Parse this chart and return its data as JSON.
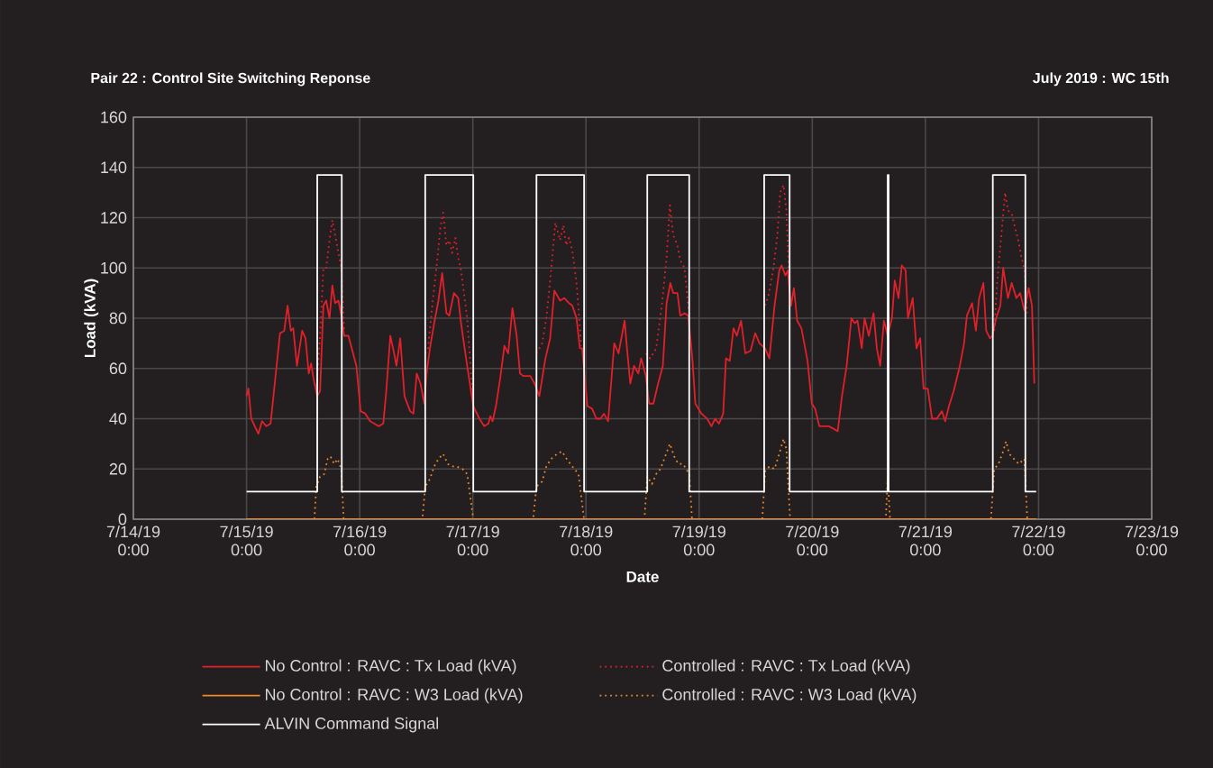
{
  "chart_data": {
    "type": "line",
    "title": "Pair 22 : Control Site Switching Reponse",
    "subtitle": "July 2019 : WC 15th",
    "xlabel": "Date",
    "ylabel": "Load (kVA)",
    "xlim": [
      "2019-07-14",
      "2019-07-23"
    ],
    "ylim": [
      0,
      160
    ],
    "yticks": [
      0,
      20,
      40,
      60,
      80,
      100,
      120,
      140,
      160
    ],
    "xticks": [
      {
        "value": "2019-07-14",
        "label": "7/14/19 0:00"
      },
      {
        "value": "2019-07-15",
        "label": "7/15/19 0:00"
      },
      {
        "value": "2019-07-16",
        "label": "7/16/19 0:00"
      },
      {
        "value": "2019-07-17",
        "label": "7/17/19 0:00"
      },
      {
        "value": "2019-07-18",
        "label": "7/18/19 0:00"
      },
      {
        "value": "2019-07-19",
        "label": "7/19/19 0:00"
      },
      {
        "value": "2019-07-20",
        "label": "7/20/19 0:00"
      },
      {
        "value": "2019-07-21",
        "label": "7/21/19 0:00"
      },
      {
        "value": "2019-07-22",
        "label": "7/22/19 0:00"
      },
      {
        "value": "2019-07-23",
        "label": "7/23/19 0:00"
      }
    ],
    "grid": true,
    "legend": "bottom",
    "marker": "none",
    "series": [
      {
        "name": "No Control : RAVC : Tx Load (kVA)",
        "color": "#e3202a",
        "line_style": "solid",
        "x": [
          "2019-07-15T00:00",
          "2019-07-15T00:24",
          "2019-07-15T01:00",
          "2019-07-15T02:00",
          "2019-07-15T02:30",
          "2019-07-15T03:18",
          "2019-07-15T04:12",
          "2019-07-15T05:06",
          "2019-07-15T06:06",
          "2019-07-15T07:06",
          "2019-07-15T08:00",
          "2019-07-15T08:42",
          "2019-07-15T09:24",
          "2019-07-15T09:54",
          "2019-07-15T10:42",
          "2019-07-15T11:48",
          "2019-07-15T12:30",
          "2019-07-15T13:12",
          "2019-07-15T13:42",
          "2019-07-15T14:12",
          "2019-07-15T15:00",
          "2019-07-15T15:36",
          "2019-07-15T16:18",
          "2019-07-15T16:54",
          "2019-07-15T17:36",
          "2019-07-15T18:12",
          "2019-07-15T18:48",
          "2019-07-15T19:30",
          "2019-07-15T20:06",
          "2019-07-15T20:42",
          "2019-07-15T21:36",
          "2019-07-15T22:36",
          "2019-07-15T23:18",
          "2019-07-16T00:12",
          "2019-07-16T01:12",
          "2019-07-16T02:12",
          "2019-07-16T03:06",
          "2019-07-16T04:00",
          "2019-07-16T05:00",
          "2019-07-16T05:36",
          "2019-07-16T06:30",
          "2019-07-16T07:18",
          "2019-07-16T07:48",
          "2019-07-16T08:36",
          "2019-07-16T09:30",
          "2019-07-16T10:42",
          "2019-07-16T11:24",
          "2019-07-16T12:06",
          "2019-07-16T12:54",
          "2019-07-16T13:42",
          "2019-07-16T14:12",
          "2019-07-16T14:54",
          "2019-07-16T15:48",
          "2019-07-16T16:42",
          "2019-07-16T17:30",
          "2019-07-16T18:24",
          "2019-07-16T19:00",
          "2019-07-16T20:00",
          "2019-07-16T20:54",
          "2019-07-16T21:30",
          "2019-07-16T22:48",
          "2019-07-17T00:06",
          "2019-07-17T01:24",
          "2019-07-17T02:24",
          "2019-07-17T03:18",
          "2019-07-17T03:42",
          "2019-07-17T04:12",
          "2019-07-17T04:54",
          "2019-07-17T05:48",
          "2019-07-17T06:42",
          "2019-07-17T07:30",
          "2019-07-17T08:24",
          "2019-07-17T09:18",
          "2019-07-17T10:00",
          "2019-07-17T10:42",
          "2019-07-17T11:18",
          "2019-07-17T12:12",
          "2019-07-17T13:06",
          "2019-07-17T14:06",
          "2019-07-17T15:24",
          "2019-07-17T16:24",
          "2019-07-17T17:18",
          "2019-07-17T18:30",
          "2019-07-17T19:24",
          "2019-07-17T20:24",
          "2019-07-17T21:06",
          "2019-07-17T22:00",
          "2019-07-17T22:42",
          "2019-07-17T23:12",
          "2019-07-18T00:18",
          "2019-07-18T01:18",
          "2019-07-18T02:12",
          "2019-07-18T03:06",
          "2019-07-18T03:48",
          "2019-07-18T04:42",
          "2019-07-18T06:00",
          "2019-07-18T06:54",
          "2019-07-18T07:36",
          "2019-07-18T08:12",
          "2019-07-18T08:42",
          "2019-07-18T09:24",
          "2019-07-18T10:12",
          "2019-07-18T11:06",
          "2019-07-18T11:42",
          "2019-07-18T12:42",
          "2019-07-18T13:24",
          "2019-07-18T14:18",
          "2019-07-18T15:18",
          "2019-07-18T16:18",
          "2019-07-18T17:06",
          "2019-07-18T17:54",
          "2019-07-18T18:30",
          "2019-07-18T19:24",
          "2019-07-18T20:00",
          "2019-07-18T20:54",
          "2019-07-18T21:42",
          "2019-07-18T22:36",
          "2019-07-18T23:12",
          "2019-07-19T00:30",
          "2019-07-19T01:42",
          "2019-07-19T02:36",
          "2019-07-19T03:24",
          "2019-07-19T04:12",
          "2019-07-19T05:06",
          "2019-07-19T05:42",
          "2019-07-19T06:30",
          "2019-07-19T07:18",
          "2019-07-19T08:00",
          "2019-07-19T08:54",
          "2019-07-19T09:48",
          "2019-07-19T10:54",
          "2019-07-19T11:54",
          "2019-07-19T12:48",
          "2019-07-19T14:00",
          "2019-07-19T14:54",
          "2019-07-19T16:00",
          "2019-07-19T17:00",
          "2019-07-19T17:30",
          "2019-07-19T18:18",
          "2019-07-19T18:48",
          "2019-07-19T19:30",
          "2019-07-19T20:06",
          "2019-07-19T20:48",
          "2019-07-19T21:42",
          "2019-07-19T23:00",
          "2019-07-19T23:54",
          "2019-07-20T00:36",
          "2019-07-20T01:30",
          "2019-07-20T02:24",
          "2019-07-20T03:30",
          "2019-07-20T04:30",
          "2019-07-20T05:24",
          "2019-07-20T06:18",
          "2019-07-20T07:18",
          "2019-07-20T08:18",
          "2019-07-20T09:00",
          "2019-07-20T09:36",
          "2019-07-20T10:30",
          "2019-07-20T11:06",
          "2019-07-20T12:00",
          "2019-07-20T13:00",
          "2019-07-20T13:42",
          "2019-07-20T14:24",
          "2019-07-20T15:12",
          "2019-07-20T16:00",
          "2019-07-20T16:54",
          "2019-07-20T17:30",
          "2019-07-20T18:18",
          "2019-07-20T19:00",
          "2019-07-20T19:48",
          "2019-07-20T20:18",
          "2019-07-20T21:18",
          "2019-07-20T22:06",
          "2019-07-20T22:54",
          "2019-07-20T23:36",
          "2019-07-21T00:30",
          "2019-07-21T01:24",
          "2019-07-21T02:24",
          "2019-07-21T03:30",
          "2019-07-21T04:12",
          "2019-07-21T05:00",
          "2019-07-21T06:00",
          "2019-07-21T07:18",
          "2019-07-21T08:12",
          "2019-07-21T08:48",
          "2019-07-21T09:54",
          "2019-07-21T10:42",
          "2019-07-21T11:24",
          "2019-07-21T12:18",
          "2019-07-21T12:54",
          "2019-07-21T13:42",
          "2019-07-21T14:12",
          "2019-07-21T15:00",
          "2019-07-21T15:54",
          "2019-07-21T16:30",
          "2019-07-21T17:30",
          "2019-07-21T18:18",
          "2019-07-21T19:18",
          "2019-07-21T20:06",
          "2019-07-21T21:00",
          "2019-07-21T21:54",
          "2019-07-21T22:36",
          "2019-07-21T23:06"
        ],
        "values": [
          49,
          52,
          40,
          36,
          34,
          39,
          37,
          38,
          56,
          74,
          75,
          85,
          75,
          76,
          61,
          75,
          72,
          58,
          62,
          56,
          49,
          51,
          85,
          87,
          80,
          93,
          86,
          87,
          81,
          73,
          73,
          66,
          61,
          43,
          42,
          39,
          38,
          37,
          38,
          50,
          73,
          66,
          61,
          72,
          49,
          43,
          42,
          58,
          54,
          46,
          58,
          68,
          78,
          87,
          98,
          82,
          81,
          90,
          88,
          78,
          61,
          45,
          40,
          37,
          38,
          41,
          39,
          45,
          56,
          69,
          66,
          84,
          73,
          58,
          57,
          57,
          57,
          54,
          49,
          64,
          72,
          91,
          87,
          88,
          86,
          85,
          80,
          68,
          68,
          45,
          44,
          40,
          40,
          42,
          39,
          70,
          66,
          73,
          79,
          68,
          54,
          61,
          58,
          64,
          57,
          46,
          46,
          54,
          61,
          86,
          94,
          90,
          90,
          81,
          82,
          81,
          63,
          46,
          42,
          40,
          37,
          40,
          38,
          42,
          64,
          63,
          76,
          73,
          79,
          66,
          67,
          74,
          70,
          68,
          64,
          85,
          99,
          101,
          97,
          99,
          85,
          92,
          79,
          76,
          63,
          46,
          44,
          37,
          37,
          37,
          36,
          35,
          49,
          61,
          80,
          78,
          79,
          68,
          80,
          73,
          82,
          68,
          61,
          79,
          73,
          80,
          95,
          88,
          101,
          99,
          80,
          88,
          68,
          72,
          52,
          52,
          40,
          40,
          43,
          39,
          45,
          51,
          61,
          70,
          81,
          86,
          75,
          88,
          94,
          75,
          72,
          73,
          80,
          85,
          100,
          88,
          94,
          88,
          90,
          83,
          92,
          85,
          54
        ]
      },
      {
        "name": "Controlled : RAVC : Tx Load (kVA)",
        "color": "#e3202a",
        "line_style": "dotted",
        "x": [
          "2019-07-15T14:48",
          "2019-07-15T15:36",
          "2019-07-15T16:18",
          "2019-07-15T16:54",
          "2019-07-15T17:36",
          "2019-07-15T18:12",
          "2019-07-15T18:48",
          "2019-07-15T19:30",
          "2019-07-15T20:06",
          "2019-07-15T20:42",
          "2019-07-16T02:00",
          "2019-07-16T13:54",
          "2019-07-16T14:30",
          "2019-07-16T15:24",
          "2019-07-16T16:30",
          "2019-07-16T17:06",
          "2019-07-16T17:42",
          "2019-07-16T18:24",
          "2019-07-16T19:00",
          "2019-07-16T19:36",
          "2019-07-16T20:18",
          "2019-07-16T20:54",
          "2019-07-16T21:30",
          "2019-07-16T22:48",
          "2019-07-17T00:06",
          "2019-07-17T08:00",
          "2019-07-17T13:30",
          "2019-07-17T14:42",
          "2019-07-17T15:36",
          "2019-07-17T16:36",
          "2019-07-17T17:30",
          "2019-07-17T18:30",
          "2019-07-17T19:12",
          "2019-07-17T19:48",
          "2019-07-17T20:24",
          "2019-07-17T21:06",
          "2019-07-17T22:00",
          "2019-07-17T23:00",
          "2019-07-18T04:00",
          "2019-07-18T12:42",
          "2019-07-18T13:36",
          "2019-07-18T14:54",
          "2019-07-18T16:12",
          "2019-07-18T17:06",
          "2019-07-18T17:48",
          "2019-07-18T18:30",
          "2019-07-18T19:24",
          "2019-07-18T20:00",
          "2019-07-18T20:54",
          "2019-07-18T21:54",
          "2019-07-19T05:00",
          "2019-07-19T14:00",
          "2019-07-19T14:42",
          "2019-07-19T15:42",
          "2019-07-19T16:36",
          "2019-07-19T17:12",
          "2019-07-19T17:54",
          "2019-07-19T18:30",
          "2019-07-19T19:12",
          "2019-07-20T16:00",
          "2019-07-21T14:36",
          "2019-07-21T15:12",
          "2019-07-21T16:12",
          "2019-07-21T16:54",
          "2019-07-21T17:30",
          "2019-07-21T18:24",
          "2019-07-21T19:00",
          "2019-07-21T19:42",
          "2019-07-21T20:18",
          "2019-07-21T21:00",
          "2019-07-21T21:36"
        ],
        "values": [
          51,
          73,
          100,
          100,
          111,
          119,
          113,
          106,
          100,
          75,
          null,
          66,
          68,
          85,
          104,
          116,
          122,
          109,
          111,
          106,
          112,
          104,
          99,
          80,
          45,
          null,
          66,
          70,
          80,
          99,
          118,
          111,
          117,
          109,
          112,
          107,
          94,
          69,
          null,
          66,
          64,
          68,
          87,
          104,
          125,
          113,
          109,
          103,
          100,
          81,
          null,
          85,
          89,
          99,
          113,
          130,
          133,
          123,
          92,
          null,
          75,
          94,
          115,
          130,
          123,
          121,
          116,
          111,
          105,
          99,
          82
        ]
      },
      {
        "name": "No Control : RAVC : W3 Load (kVA)",
        "color": "#f0892a",
        "line_style": "solid",
        "x": [
          "2019-07-15T00:00",
          "2019-07-21T23:30"
        ],
        "values": [
          0,
          0
        ]
      },
      {
        "name": "Controlled : RAVC : W3 Load (kVA)",
        "color": "#f0892a",
        "line_style": "dotted",
        "x": [
          "2019-07-15T00:00",
          "2019-07-15T14:24",
          "2019-07-15T14:48",
          "2019-07-15T15:36",
          "2019-07-15T16:30",
          "2019-07-15T17:12",
          "2019-07-15T17:48",
          "2019-07-15T18:36",
          "2019-07-15T19:18",
          "2019-07-15T20:06",
          "2019-07-15T20:36",
          "2019-07-16T13:18",
          "2019-07-16T13:54",
          "2019-07-16T14:54",
          "2019-07-16T15:48",
          "2019-07-16T16:42",
          "2019-07-16T17:42",
          "2019-07-16T18:42",
          "2019-07-16T19:36",
          "2019-07-16T20:30",
          "2019-07-16T21:48",
          "2019-07-16T22:48",
          "2019-07-17T00:06",
          "2019-07-17T12:48",
          "2019-07-17T13:30",
          "2019-07-17T14:42",
          "2019-07-17T15:36",
          "2019-07-17T16:36",
          "2019-07-17T17:54",
          "2019-07-17T18:54",
          "2019-07-17T19:54",
          "2019-07-17T21:06",
          "2019-07-17T22:24",
          "2019-07-17T23:36",
          "2019-07-18T12:24",
          "2019-07-18T13:00",
          "2019-07-18T14:00",
          "2019-07-18T14:54",
          "2019-07-18T15:48",
          "2019-07-18T16:48",
          "2019-07-18T17:48",
          "2019-07-18T18:42",
          "2019-07-18T19:36",
          "2019-07-18T20:36",
          "2019-07-18T21:54",
          "2019-07-18T22:30",
          "2019-07-19T13:24",
          "2019-07-19T14:00",
          "2019-07-19T14:54",
          "2019-07-19T16:00",
          "2019-07-19T17:00",
          "2019-07-19T17:54",
          "2019-07-19T18:30",
          "2019-07-19T19:18",
          "2019-07-20T15:36",
          "2019-07-20T16:00",
          "2019-07-20T16:30",
          "2019-07-21T13:54",
          "2019-07-21T14:36",
          "2019-07-21T15:30",
          "2019-07-21T16:30",
          "2019-07-21T17:06",
          "2019-07-21T17:48",
          "2019-07-21T18:48",
          "2019-07-21T19:48",
          "2019-07-21T21:00",
          "2019-07-21T21:36",
          "2019-07-21T23:30"
        ],
        "values": [
          0,
          0,
          13,
          17,
          18,
          24,
          25,
          22,
          24,
          20,
          0,
          0,
          13,
          16,
          21,
          24,
          26,
          22,
          21,
          21,
          20,
          18,
          0,
          0,
          13,
          15,
          21,
          24,
          26,
          27,
          24,
          21,
          18,
          0,
          0,
          17,
          14,
          18,
          20,
          25,
          30,
          25,
          22,
          22,
          18,
          0,
          0,
          19,
          21,
          20,
          26,
          32,
          28,
          0,
          0,
          17,
          0,
          0,
          20,
          22,
          27,
          31,
          26,
          24,
          22,
          24,
          0,
          0
        ]
      },
      {
        "name": "ALVIN Command Signal",
        "color": "#ffffff",
        "line_style": "solid",
        "x": [
          "2019-07-15T00:00",
          "2019-07-15T15:00",
          "2019-07-15T15:00",
          "2019-07-15T20:12",
          "2019-07-15T20:12",
          "2019-07-16T13:54",
          "2019-07-16T13:54",
          "2019-07-17T00:06",
          "2019-07-17T00:06",
          "2019-07-17T13:30",
          "2019-07-17T13:30",
          "2019-07-17T23:36",
          "2019-07-17T23:36",
          "2019-07-18T13:00",
          "2019-07-18T13:00",
          "2019-07-18T21:54",
          "2019-07-18T21:54",
          "2019-07-19T13:48",
          "2019-07-19T13:48",
          "2019-07-19T19:12",
          "2019-07-19T19:12",
          "2019-07-20T16:00",
          "2019-07-20T16:00",
          "2019-07-20T16:12",
          "2019-07-20T16:12",
          "2019-07-21T14:18",
          "2019-07-21T14:18",
          "2019-07-21T21:12",
          "2019-07-21T21:12",
          "2019-07-21T23:30"
        ],
        "values": [
          11,
          11,
          137,
          137,
          11,
          11,
          137,
          137,
          11,
          11,
          137,
          137,
          11,
          11,
          137,
          137,
          11,
          11,
          137,
          137,
          11,
          11,
          137,
          137,
          11,
          11,
          137,
          137,
          11,
          11
        ]
      }
    ]
  }
}
